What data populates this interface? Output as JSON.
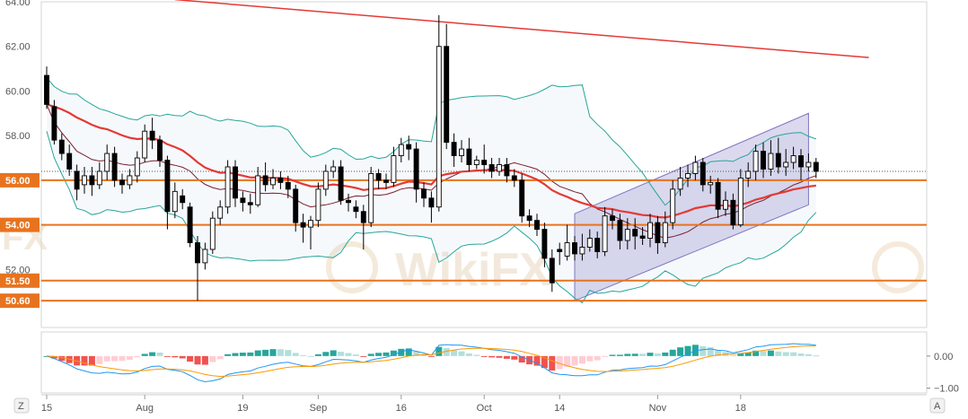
{
  "chart_data": {
    "type": "candlestick",
    "price_axis": {
      "ylim": [
        49.4,
        64.0
      ],
      "ticks": [
        {
          "value": 64,
          "label": "64.00"
        },
        {
          "value": 62,
          "label": "62.00"
        },
        {
          "value": 60,
          "label": "60.00"
        },
        {
          "value": 58,
          "label": "58.00"
        },
        {
          "value": 52,
          "label": "52.00"
        }
      ],
      "level_badges": [
        {
          "value": 56.0,
          "label": "56.00"
        },
        {
          "value": 54.0,
          "label": "54.00"
        },
        {
          "value": 51.5,
          "label": "51.50"
        },
        {
          "value": 50.6,
          "label": "50.60"
        }
      ]
    },
    "x_axis": {
      "count": 110,
      "ticks": [
        {
          "index": 0,
          "label": "15"
        },
        {
          "index": 13,
          "label": "Aug"
        },
        {
          "index": 26,
          "label": "19"
        },
        {
          "index": 36,
          "label": "Sep"
        },
        {
          "index": 47,
          "label": "16"
        },
        {
          "index": 58,
          "label": "Oct"
        },
        {
          "index": 68,
          "label": "14"
        },
        {
          "index": 81,
          "label": "Nov"
        },
        {
          "index": 92,
          "label": "18"
        }
      ]
    },
    "candles": [
      [
        60.7,
        59.4,
        61.1,
        59.2
      ],
      [
        59.3,
        57.8,
        59.6,
        57.6
      ],
      [
        57.8,
        57.2,
        58.1,
        56.9
      ],
      [
        57.2,
        56.5,
        57.6,
        56.2
      ],
      [
        56.4,
        55.6,
        56.7,
        55.1
      ],
      [
        55.8,
        56.2,
        56.6,
        55.4
      ],
      [
        56.2,
        55.8,
        56.6,
        55.3
      ],
      [
        55.8,
        56.4,
        56.8,
        55.6
      ],
      [
        56.4,
        57.2,
        57.6,
        56.0
      ],
      [
        57.2,
        56.0,
        57.5,
        55.7
      ],
      [
        56.0,
        55.8,
        56.3,
        55.4
      ],
      [
        55.8,
        56.2,
        56.5,
        55.6
      ],
      [
        56.2,
        57.0,
        57.3,
        55.9
      ],
      [
        57.0,
        58.2,
        58.5,
        56.8
      ],
      [
        58.2,
        57.8,
        58.8,
        57.4
      ],
      [
        57.8,
        56.9,
        58.0,
        56.6
      ],
      [
        56.9,
        54.6,
        57.1,
        53.8
      ],
      [
        54.6,
        55.5,
        55.9,
        54.3
      ],
      [
        55.3,
        55.0,
        55.6,
        54.7
      ],
      [
        54.8,
        53.2,
        55.0,
        53.0
      ],
      [
        53.2,
        52.3,
        53.5,
        50.6
      ],
      [
        52.3,
        52.9,
        53.2,
        52.0
      ],
      [
        52.9,
        54.3,
        54.6,
        52.7
      ],
      [
        54.3,
        54.8,
        55.1,
        54.0
      ],
      [
        54.8,
        56.6,
        56.9,
        54.5
      ],
      [
        56.6,
        55.2,
        56.9,
        54.8
      ],
      [
        55.2,
        55.0,
        55.5,
        54.6
      ],
      [
        55.0,
        54.9,
        55.4,
        54.5
      ],
      [
        54.9,
        56.2,
        56.6,
        54.8
      ],
      [
        56.2,
        55.8,
        56.8,
        55.5
      ],
      [
        55.8,
        56.1,
        56.5,
        55.6
      ],
      [
        56.1,
        55.9,
        56.4,
        55.6
      ],
      [
        55.9,
        55.6,
        56.2,
        55.2
      ],
      [
        55.6,
        54.1,
        55.8,
        53.7
      ],
      [
        54.1,
        53.9,
        54.5,
        53.2
      ],
      [
        53.9,
        54.2,
        54.4,
        52.9
      ],
      [
        54.2,
        55.6,
        55.9,
        53.9
      ],
      [
        55.6,
        56.4,
        56.7,
        55.3
      ],
      [
        56.4,
        56.6,
        56.9,
        56.1
      ],
      [
        56.6,
        55.1,
        56.9,
        54.9
      ],
      [
        55.1,
        55.0,
        55.4,
        54.6
      ],
      [
        54.8,
        54.6,
        55.1,
        54.3
      ],
      [
        54.6,
        54.1,
        54.9,
        52.9
      ],
      [
        54.1,
        56.3,
        56.6,
        53.9
      ],
      [
        56.3,
        56.0,
        56.5,
        55.6
      ],
      [
        56.0,
        55.9,
        56.3,
        55.6
      ],
      [
        55.9,
        57.1,
        57.5,
        55.7
      ],
      [
        57.1,
        57.6,
        57.9,
        56.8
      ],
      [
        57.6,
        57.4,
        58.0,
        56.9
      ],
      [
        57.4,
        55.6,
        57.7,
        55.0
      ],
      [
        55.6,
        55.2,
        55.9,
        54.8
      ],
      [
        55.2,
        54.8,
        55.5,
        54.1
      ],
      [
        54.8,
        62.0,
        63.4,
        54.6
      ],
      [
        62.0,
        57.7,
        63.0,
        57.4
      ],
      [
        57.7,
        57.1,
        58.1,
        56.6
      ],
      [
        57.1,
        57.4,
        57.8,
        56.8
      ],
      [
        57.4,
        56.7,
        57.9,
        56.4
      ],
      [
        56.7,
        56.9,
        57.1,
        56.5
      ],
      [
        56.9,
        56.7,
        57.6,
        56.3
      ],
      [
        56.7,
        56.4,
        57.0,
        56.1
      ],
      [
        56.4,
        56.7,
        57.0,
        56.2
      ],
      [
        56.7,
        56.2,
        57.0,
        55.9
      ],
      [
        56.2,
        56.0,
        56.5,
        55.7
      ],
      [
        56.0,
        54.4,
        56.3,
        54.1
      ],
      [
        54.4,
        54.2,
        54.7,
        53.9
      ],
      [
        54.2,
        53.8,
        54.5,
        53.5
      ],
      [
        53.8,
        52.5,
        54.1,
        52.1
      ],
      [
        52.5,
        51.4,
        52.9,
        51.0
      ],
      [
        52.9,
        52.8,
        53.2,
        52.2
      ],
      [
        52.6,
        53.2,
        54.0,
        52.4
      ],
      [
        53.2,
        52.7,
        53.5,
        52.4
      ],
      [
        52.7,
        53.0,
        53.6,
        52.4
      ],
      [
        53.0,
        53.4,
        53.8,
        52.8
      ],
      [
        53.4,
        52.8,
        53.7,
        52.5
      ],
      [
        52.8,
        54.4,
        54.8,
        52.6
      ],
      [
        54.4,
        54.2,
        54.7,
        53.8
      ],
      [
        54.2,
        53.3,
        54.5,
        52.9
      ],
      [
        53.3,
        53.8,
        54.3,
        52.9
      ],
      [
        53.8,
        53.5,
        54.3,
        52.9
      ],
      [
        53.5,
        53.4,
        53.9,
        53.1
      ],
      [
        53.4,
        54.1,
        54.5,
        53.0
      ],
      [
        54.1,
        53.2,
        54.4,
        52.7
      ],
      [
        53.2,
        54.1,
        54.6,
        53.0
      ],
      [
        54.1,
        55.6,
        56.0,
        53.8
      ],
      [
        55.6,
        56.1,
        56.6,
        55.3
      ],
      [
        56.1,
        56.3,
        56.7,
        55.7
      ],
      [
        56.3,
        56.8,
        57.1,
        56.0
      ],
      [
        56.8,
        55.8,
        57.0,
        55.5
      ],
      [
        55.8,
        55.9,
        56.2,
        55.4
      ],
      [
        55.9,
        54.7,
        56.1,
        54.3
      ],
      [
        54.7,
        55.1,
        55.5,
        54.4
      ],
      [
        55.1,
        54.0,
        55.4,
        53.8
      ],
      [
        54.0,
        56.1,
        56.5,
        53.9
      ],
      [
        56.1,
        56.4,
        56.8,
        55.7
      ],
      [
        56.4,
        57.3,
        57.6,
        56.0
      ],
      [
        57.3,
        56.5,
        57.7,
        56.1
      ],
      [
        56.5,
        57.2,
        57.8,
        56.2
      ],
      [
        57.2,
        56.6,
        57.9,
        56.3
      ],
      [
        56.6,
        56.8,
        57.4,
        56.2
      ],
      [
        56.8,
        57.1,
        57.5,
        56.5
      ],
      [
        57.1,
        56.6,
        57.4,
        56.0
      ],
      [
        56.6,
        56.8,
        57.2,
        56.4
      ],
      [
        56.8,
        56.4,
        57.0,
        56.1
      ]
    ],
    "overlays": {
      "trendline": {
        "start": [
          17,
          64.1
        ],
        "end": [
          109,
          61.5
        ],
        "color": "#e53935"
      },
      "horizontal_levels": [
        56.0,
        54.0,
        51.5,
        50.6
      ],
      "level_color": "#e8731e",
      "channel_polygon": [
        [
          70,
          50.6
        ],
        [
          101,
          54.9
        ],
        [
          101,
          59.0
        ],
        [
          70,
          54.5
        ]
      ],
      "channel_color": "#9c8fcf",
      "ma200_color": "#e53935",
      "bb_color": "#26a69a",
      "basis_color": "#7b1f2e",
      "dotted_last_price": 56.4
    },
    "macd": {
      "ticks": [
        {
          "value": 0.0,
          "label": "0.00"
        },
        {
          "value": -1.0,
          "label": "−1.00"
        }
      ],
      "ylim": [
        -1.15,
        0.75
      ],
      "macd_color": "#2196f3",
      "signal_color": "#ff9800"
    }
  },
  "axis_buttons": {
    "left": "Z",
    "right": "A"
  },
  "watermark": {
    "text": "WikiFX",
    "text_left": "FX"
  }
}
